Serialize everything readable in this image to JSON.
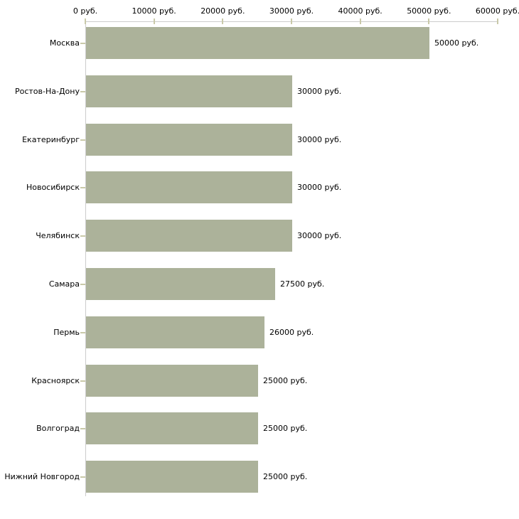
{
  "chart_data": {
    "type": "bar",
    "orientation": "horizontal",
    "title": "",
    "categories": [
      "Москва",
      "Ростов-На-Дону",
      "Екатеринбург",
      "Новосибирск",
      "Челябинск",
      "Самара",
      "Пермь",
      "Красноярск",
      "Волгоград",
      "Нижний Новгород"
    ],
    "values": [
      50000,
      30000,
      30000,
      30000,
      30000,
      27500,
      26000,
      25000,
      25000,
      25000
    ],
    "value_labels": [
      "50000 руб.",
      "30000 руб.",
      "30000 руб.",
      "30000 руб.",
      "30000 руб.",
      "27500 руб.",
      "26000 руб.",
      "25000 руб.",
      "25000 руб.",
      "25000 руб."
    ],
    "unit": "руб.",
    "x_axis": {
      "position": "top",
      "range": [
        0,
        60000
      ],
      "ticks": [
        {
          "value": 0,
          "label": "0 руб."
        },
        {
          "value": 10000,
          "label": "10000 руб."
        },
        {
          "value": 20000,
          "label": "20000 руб."
        },
        {
          "value": 30000,
          "label": "30000 руб."
        },
        {
          "value": 40000,
          "label": "40000 руб."
        },
        {
          "value": 50000,
          "label": "50000 руб."
        },
        {
          "value": 60000,
          "label": "60000 руб."
        }
      ]
    },
    "legend": "none",
    "grid": "off",
    "colors": {
      "bar": "#acb29a",
      "tick": "#c9c9a9",
      "axis_line": "#cccccc",
      "text": "#000000",
      "background": "#ffffff"
    }
  }
}
